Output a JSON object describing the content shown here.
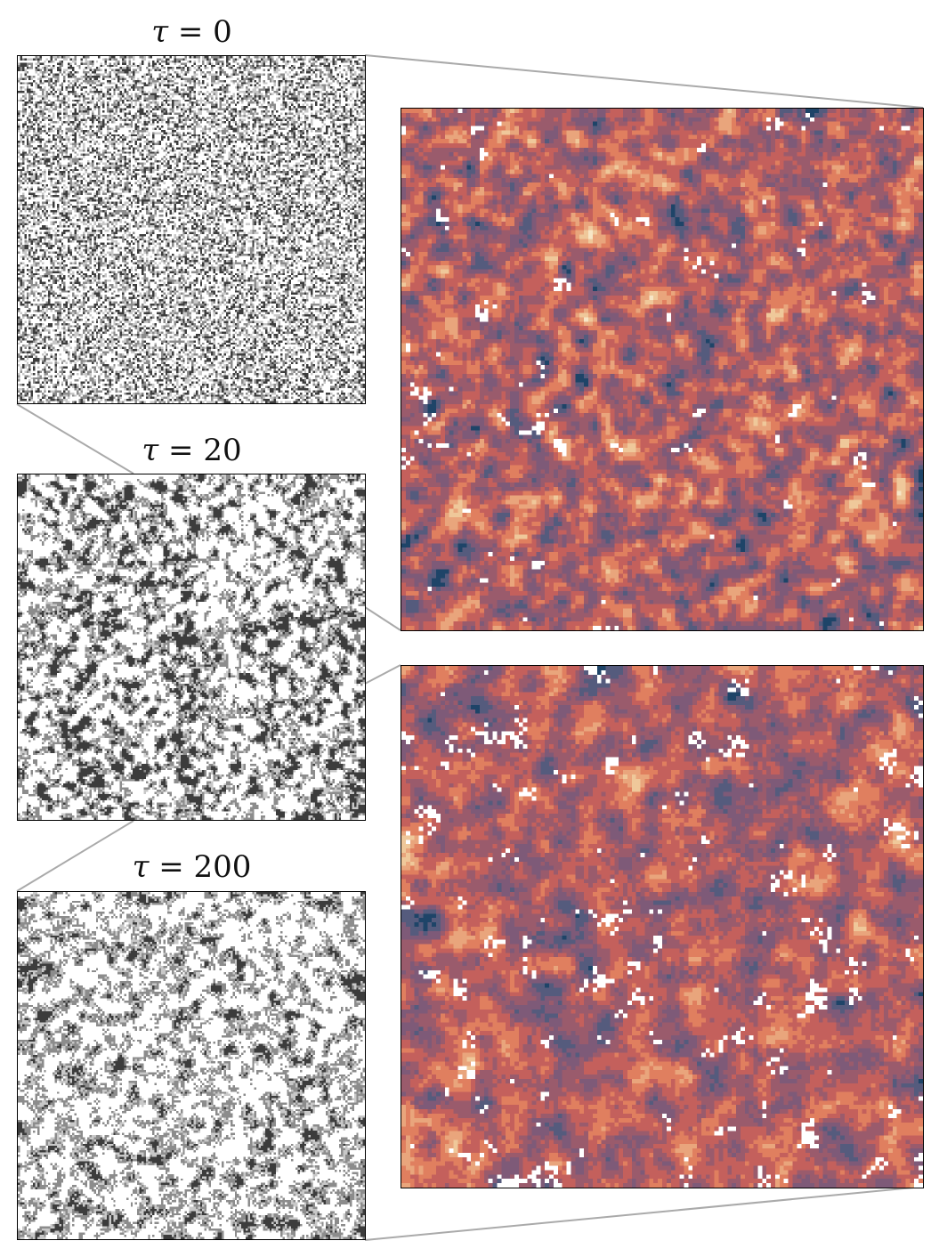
{
  "panels": [
    {
      "symbol": "τ",
      "equals": " = ",
      "value": "0"
    },
    {
      "symbol": "τ",
      "equals": " = ",
      "value": "20"
    },
    {
      "symbol": "τ",
      "equals": " = ",
      "value": "200"
    }
  ],
  "grayscale_palette": [
    "#ffffff",
    "#c8c8c8",
    "#8c8c8c",
    "#3c3c3c"
  ],
  "color_palette": [
    "#0a2740",
    "#1e4468",
    "#555b7d",
    "#7e5a78",
    "#9a5b6c",
    "#c4605c",
    "#e07f5f",
    "#e9a57c",
    "#efc89a",
    "#f7e6c6"
  ],
  "connector_color": "#aaaaaa"
}
